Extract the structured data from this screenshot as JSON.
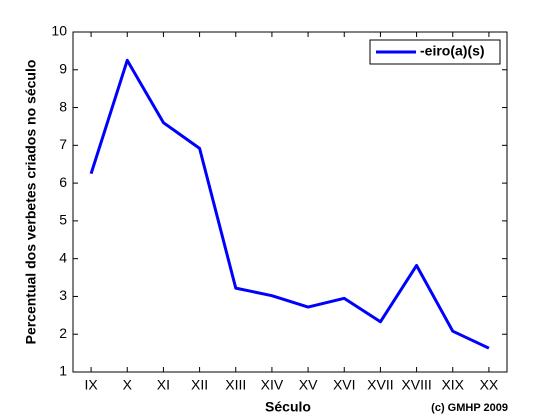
{
  "chart_data": {
    "type": "line",
    "xlabel": "Século",
    "ylabel": "Percentual dos verbetes criados no século",
    "annotation": "(c) GMHP 2009",
    "categories": [
      "IX",
      "X",
      "XI",
      "XII",
      "XIII",
      "XIV",
      "XV",
      "XVI",
      "XVII",
      "XVIII",
      "XIX",
      "XX"
    ],
    "series": [
      {
        "name": "-eiro(a)(s)",
        "color": "#0000ff",
        "values": [
          6.25,
          9.25,
          7.6,
          6.92,
          3.22,
          3.02,
          2.72,
          2.95,
          2.33,
          3.82,
          2.08,
          1.63
        ]
      }
    ],
    "ylim": [
      1,
      10
    ],
    "yticks": [
      1,
      2,
      3,
      4,
      5,
      6,
      7,
      8,
      9,
      10
    ],
    "grid": false,
    "legend": "upper right"
  }
}
